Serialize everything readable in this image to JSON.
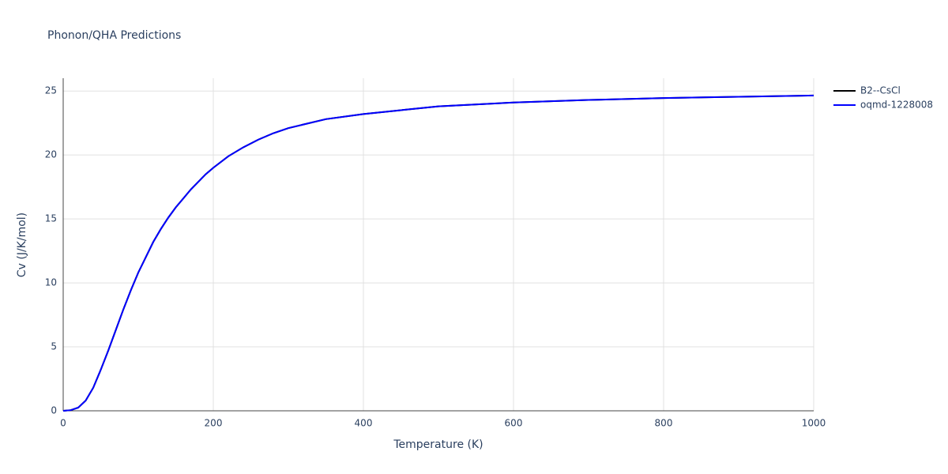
{
  "chart_data": {
    "type": "line",
    "title": "Phonon/QHA Predictions",
    "x_label": "Temperature (K)",
    "y_label": "Cv (J/K/mol)",
    "x": [
      0,
      10,
      20,
      30,
      40,
      50,
      60,
      70,
      80,
      90,
      100,
      110,
      120,
      130,
      140,
      150,
      160,
      170,
      180,
      190,
      200,
      220,
      240,
      260,
      280,
      300,
      350,
      400,
      450,
      500,
      600,
      700,
      800,
      900,
      1000
    ],
    "series": [
      {
        "name": "B2--CsCl",
        "color": "#000000",
        "values": [
          0,
          0.05,
          0.25,
          0.8,
          1.8,
          3.2,
          4.7,
          6.3,
          7.9,
          9.4,
          10.8,
          12.0,
          13.2,
          14.2,
          15.1,
          15.9,
          16.6,
          17.3,
          17.9,
          18.5,
          19.0,
          19.9,
          20.6,
          21.2,
          21.7,
          22.1,
          22.8,
          23.2,
          23.5,
          23.8,
          24.1,
          24.3,
          24.45,
          24.55,
          24.65
        ]
      },
      {
        "name": "oqmd-1228008",
        "color": "#0000ff",
        "values": [
          0,
          0.05,
          0.25,
          0.8,
          1.8,
          3.2,
          4.7,
          6.3,
          7.9,
          9.4,
          10.8,
          12.0,
          13.2,
          14.2,
          15.1,
          15.9,
          16.6,
          17.3,
          17.9,
          18.5,
          19.0,
          19.9,
          20.6,
          21.2,
          21.7,
          22.1,
          22.8,
          23.2,
          23.5,
          23.8,
          24.1,
          24.3,
          24.45,
          24.55,
          24.65
        ]
      }
    ],
    "xlim": [
      0,
      1000
    ],
    "ylim": [
      0,
      26
    ],
    "xticks": [
      0,
      200,
      400,
      600,
      800,
      1000
    ],
    "yticks": [
      0,
      5,
      10,
      15,
      20,
      25
    ],
    "grid": true,
    "legend": "right"
  }
}
